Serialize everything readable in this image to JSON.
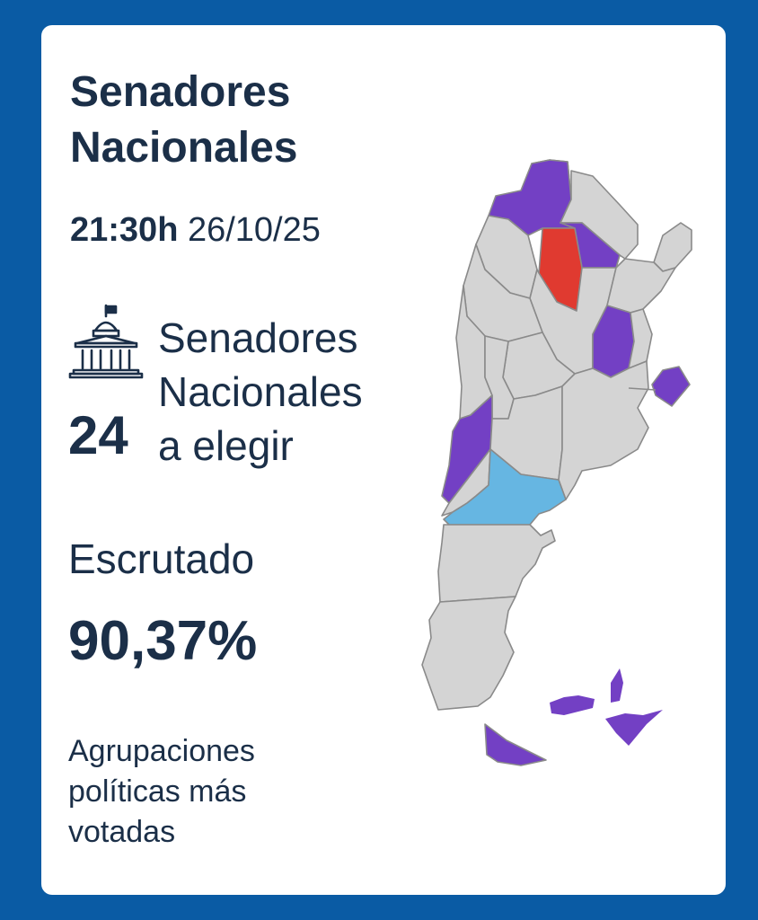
{
  "header": {
    "title_line1": "Senadores",
    "title_line2": "Nacionales",
    "time": "21:30h",
    "date": "26/10/25"
  },
  "seats": {
    "count": "24",
    "label_line1": "Senadores",
    "label_line2": "Nacionales",
    "label_line3": "a elegir",
    "icon": "capitol-building-icon"
  },
  "scrutiny": {
    "label": "Escrutado",
    "value": "90,37%"
  },
  "parties": {
    "label_line1": "Agrupaciones",
    "label_line2": "políticas más",
    "label_line3": "votadas"
  },
  "colors": {
    "background": "#0a5ba4",
    "card": "#ffffff",
    "text": "#1b2f48",
    "province_no_election": "#d4d4d4",
    "winner_purple": "#7340c4",
    "winner_red": "#e03a30",
    "winner_blue": "#66b6e2"
  }
}
